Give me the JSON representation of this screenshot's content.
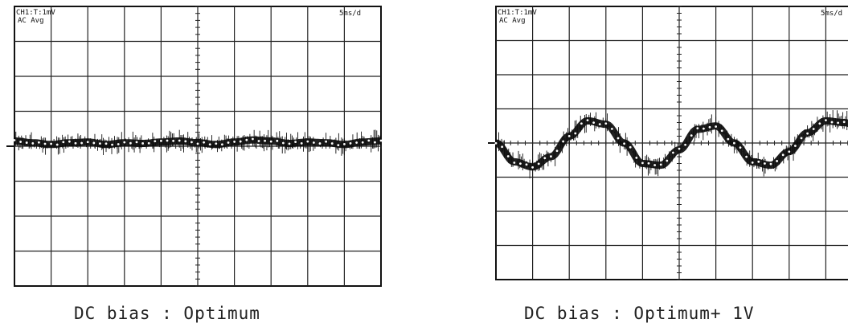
{
  "chart_data": [
    {
      "type": "line",
      "header_left": [
        "CH1:T:1mV",
        "AC Avg"
      ],
      "header_right": "5ms/d",
      "caption": "DC bias : Optimum",
      "grid": true,
      "divisions": {
        "x": 10,
        "y": 8
      },
      "series": [
        {
          "x": [
            0,
            0.5,
            1,
            1.5,
            2,
            2.5,
            3,
            3.5,
            4,
            4.5,
            5,
            5.5,
            6,
            6.5,
            7,
            7.5,
            8,
            8.5,
            9,
            9.5,
            10
          ],
          "values": [
            4.15,
            4.1,
            4.05,
            4.1,
            4.12,
            4.05,
            4.1,
            4.08,
            4.12,
            4.15,
            4.1,
            4.05,
            4.12,
            4.18,
            4.15,
            4.08,
            4.12,
            4.1,
            4.05,
            4.12,
            4.15
          ],
          "noise_div": 0.55
        }
      ],
      "ylim": [
        0,
        8
      ],
      "xlim": [
        0,
        10
      ]
    },
    {
      "type": "line",
      "header_left": [
        "CH1:T:1mV",
        "AC Avg"
      ],
      "header_right": "5ms/d",
      "caption": "DC bias : Optimum+ 1V",
      "grid": true,
      "divisions": {
        "x": 10,
        "y": 8
      },
      "series": [
        {
          "x": [
            0,
            0.5,
            1,
            1.5,
            2,
            2.5,
            3,
            3.5,
            4,
            4.5,
            5,
            5.5,
            6,
            6.5,
            7,
            7.5,
            8,
            8.5,
            9,
            9.5,
            10
          ],
          "values": [
            4.0,
            3.45,
            3.3,
            3.6,
            4.2,
            4.65,
            4.55,
            4.0,
            3.4,
            3.35,
            3.8,
            4.4,
            4.5,
            4.0,
            3.45,
            3.35,
            3.75,
            4.3,
            4.65,
            4.6,
            4.4
          ],
          "noise_div": 0.6
        }
      ],
      "ylim": [
        0,
        8
      ],
      "xlim": [
        0,
        10
      ]
    }
  ]
}
